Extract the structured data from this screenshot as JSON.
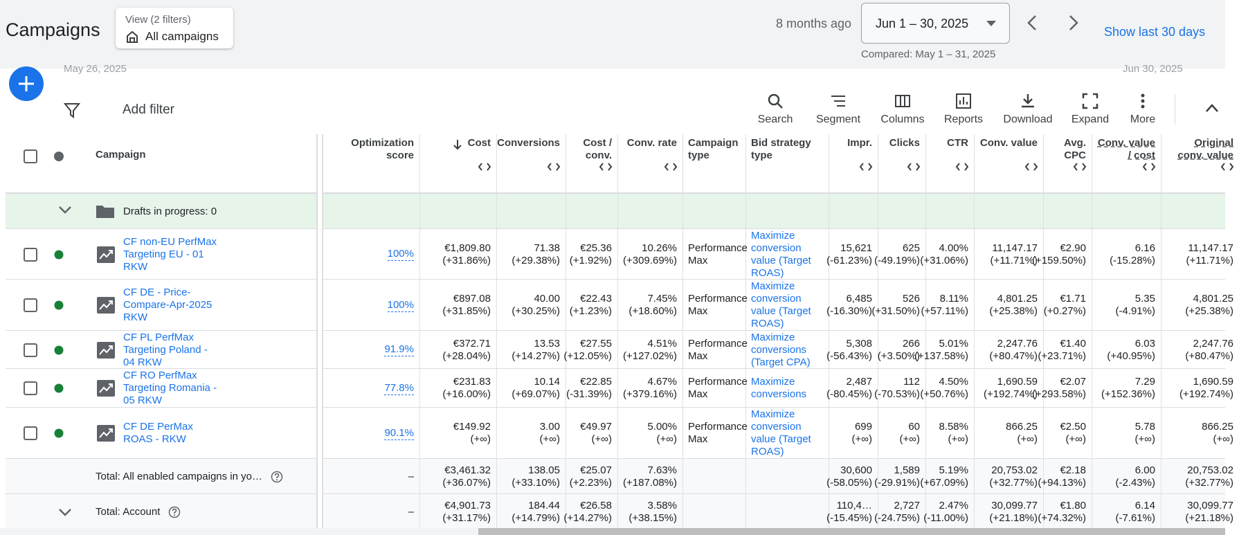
{
  "header": {
    "title": "Campaigns",
    "view_label": "View (2 filters)",
    "view_value": "All campaigns",
    "relative": "8 months ago",
    "date_range": "Jun 1 – 30, 2025",
    "compared": "Compared: May 1 – 31, 2025",
    "show_last": "Show last 30 days"
  },
  "chart_strip": {
    "start": "May 26, 2025",
    "end": "Jun 30, 2025"
  },
  "toolbar": {
    "add_filter": "Add filter",
    "actions": [
      "Search",
      "Segment",
      "Columns",
      "Reports",
      "Download",
      "Expand",
      "More"
    ]
  },
  "table": {
    "columns": [
      "Campaign",
      "Optimization score",
      "Cost",
      "Conversions",
      "Cost / conv.",
      "Conv. rate",
      "Campaign type",
      "Bid strategy type",
      "Impr.",
      "Clicks",
      "CTR",
      "Conv. value",
      "Avg. CPC",
      "Conv. value / cost",
      "Original conv. value"
    ],
    "drafts": "Drafts in progress: 0",
    "rows": [
      {
        "name": "CF non-EU PerfMax Targeting EU - 01 RKW",
        "cells": [
          [
            "100%"
          ],
          [
            "€1,809.80",
            "(+31.86%)"
          ],
          [
            "71.38",
            "(+29.38%)"
          ],
          [
            "€25.36",
            "(+1.92%)"
          ],
          [
            "10.26%",
            "(+309.69%)"
          ],
          [
            "Performance Max"
          ],
          [
            "Maximize conversion value (Target ROAS)"
          ],
          [
            "15,621",
            "(-61.23%)"
          ],
          [
            "625",
            "(-49.19%)"
          ],
          [
            "4.00%",
            "(+31.06%)"
          ],
          [
            "11,147.17",
            "(+11.71%)"
          ],
          [
            "€2.90",
            "(+159.50%)"
          ],
          [
            "6.16",
            "(-15.28%)"
          ],
          [
            "11,147.17",
            "(+11.71%)"
          ]
        ]
      },
      {
        "name": "CF DE - Price-Compare-Apr-2025 RKW",
        "cells": [
          [
            "100%"
          ],
          [
            "€897.08",
            "(+31.85%)"
          ],
          [
            "40.00",
            "(+30.25%)"
          ],
          [
            "€22.43",
            "(+1.23%)"
          ],
          [
            "7.45%",
            "(+18.60%)"
          ],
          [
            "Performance Max"
          ],
          [
            "Maximize conversion value (Target ROAS)"
          ],
          [
            "6,485",
            "(-16.30%)"
          ],
          [
            "526",
            "(+31.50%)"
          ],
          [
            "8.11%",
            "(+57.11%)"
          ],
          [
            "4,801.25",
            "(+25.38%)"
          ],
          [
            "€1.71",
            "(+0.27%)"
          ],
          [
            "5.35",
            "(-4.91%)"
          ],
          [
            "4,801.25",
            "(+25.38%)"
          ]
        ]
      },
      {
        "name": "CF PL PerfMax Targeting Poland - 04 RKW",
        "cells": [
          [
            "91.9%"
          ],
          [
            "€372.71",
            "(+28.04%)"
          ],
          [
            "13.53",
            "(+14.27%)"
          ],
          [
            "€27.55",
            "(+12.05%)"
          ],
          [
            "4.51%",
            "(+127.02%)"
          ],
          [
            "Performance Max"
          ],
          [
            "Maximize conversions (Target CPA)"
          ],
          [
            "5,308",
            "(-56.43%)"
          ],
          [
            "266",
            "(+3.50%)"
          ],
          [
            "5.01%",
            "(+137.58%)"
          ],
          [
            "2,247.76",
            "(+80.47%)"
          ],
          [
            "€1.40",
            "(+23.71%)"
          ],
          [
            "6.03",
            "(+40.95%)"
          ],
          [
            "2,247.76",
            "(+80.47%)"
          ]
        ]
      },
      {
        "name": "CF RO PerfMax Targeting Romania - 05 RKW",
        "cells": [
          [
            "77.8%"
          ],
          [
            "€231.83",
            "(+16.00%)"
          ],
          [
            "10.14",
            "(+69.07%)"
          ],
          [
            "€22.85",
            "(-31.39%)"
          ],
          [
            "4.67%",
            "(+379.16%)"
          ],
          [
            "Performance Max"
          ],
          [
            "Maximize conversions"
          ],
          [
            "2,487",
            "(-80.45%)"
          ],
          [
            "112",
            "(-70.53%)"
          ],
          [
            "4.50%",
            "(+50.76%)"
          ],
          [
            "1,690.59",
            "(+192.74%)"
          ],
          [
            "€2.07",
            "(+293.58%)"
          ],
          [
            "7.29",
            "(+152.36%)"
          ],
          [
            "1,690.59",
            "(+192.74%)"
          ]
        ]
      },
      {
        "name": "CF DE PerMax ROAS - RKW",
        "cells": [
          [
            "90.1%"
          ],
          [
            "€149.92",
            "(+∞)"
          ],
          [
            "3.00",
            "(+∞)"
          ],
          [
            "€49.97",
            "(+∞)"
          ],
          [
            "5.00%",
            "(+∞)"
          ],
          [
            "Performance Max"
          ],
          [
            "Maximize conversion value (Target ROAS)"
          ],
          [
            "699",
            "(+∞)"
          ],
          [
            "60",
            "(+∞)"
          ],
          [
            "8.58%",
            "(+∞)"
          ],
          [
            "866.25",
            "(+∞)"
          ],
          [
            "€2.50",
            "(+∞)"
          ],
          [
            "5.78",
            "(+∞)"
          ],
          [
            "866.25",
            "(+∞)"
          ]
        ]
      }
    ],
    "totals": [
      {
        "label": "Total: All enabled campaigns in yo…",
        "cells": [
          [
            "–"
          ],
          [
            "€3,461.32",
            "(+36.07%)"
          ],
          [
            "138.05",
            "(+33.10%)"
          ],
          [
            "€25.07",
            "(+2.23%)"
          ],
          [
            "7.63%",
            "(+187.08%)"
          ],
          [],
          [],
          [
            "30,600",
            "(-58.05%)"
          ],
          [
            "1,589",
            "(-29.91%)"
          ],
          [
            "5.19%",
            "(+67.09%)"
          ],
          [
            "20,753.02",
            "(+32.77%)"
          ],
          [
            "€2.18",
            "(+94.13%)"
          ],
          [
            "6.00",
            "(-2.43%)"
          ],
          [
            "20,753.02",
            "(+32.77%)"
          ]
        ]
      },
      {
        "label": "Total: Account",
        "cells": [
          [
            "–"
          ],
          [
            "€4,901.73",
            "(+31.17%)"
          ],
          [
            "184.44",
            "(+14.79%)"
          ],
          [
            "€26.58",
            "(+14.27%)"
          ],
          [
            "3.58%",
            "(+38.15%)"
          ],
          [],
          [],
          [
            "110,4…",
            "(-15.45%)"
          ],
          [
            "2,727",
            "(-24.75%)"
          ],
          [
            "2.47%",
            "(-11.00%)"
          ],
          [
            "30,099.77",
            "(+21.18%)"
          ],
          [
            "€1.80",
            "(+74.32%)"
          ],
          [
            "6.14",
            "(-7.61%)"
          ],
          [
            "30,099.77",
            "(+21.18%)"
          ]
        ]
      }
    ]
  }
}
